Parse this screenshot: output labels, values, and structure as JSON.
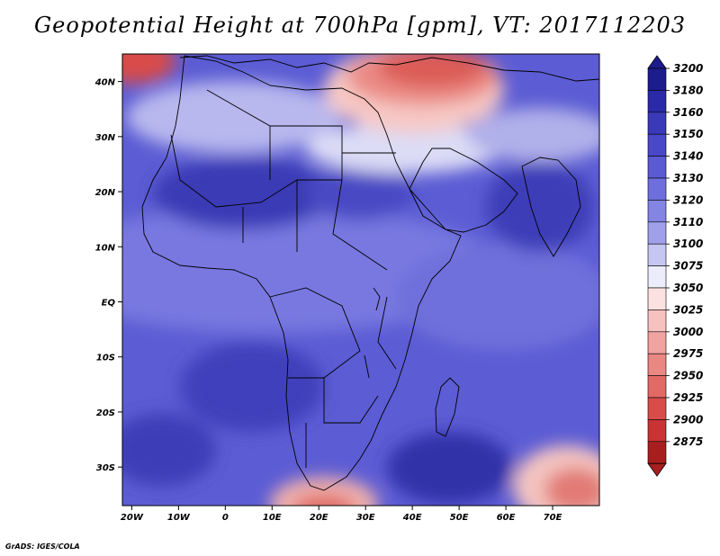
{
  "title": "Geopotential Height at 700hPa [gpm], VT: 2017112203",
  "footer": "GrADS: IGES/COLA",
  "map": {
    "lon_range": [
      -22,
      80
    ],
    "lat_range": [
      -37,
      45
    ],
    "lon_ticks": [
      "20W",
      "10W",
      "0",
      "10E",
      "20E",
      "30E",
      "40E",
      "50E",
      "60E",
      "70E"
    ],
    "lat_ticks": [
      "40N",
      "30N",
      "20N",
      "10N",
      "EQ",
      "10S",
      "20S",
      "30S"
    ],
    "field": "Geopotential Height at 700hPa",
    "units": "gpm"
  },
  "colorbar": {
    "labels": [
      "3200",
      "3180",
      "3160",
      "3150",
      "3140",
      "3130",
      "3120",
      "3110",
      "3100",
      "3075",
      "3050",
      "3025",
      "3000",
      "2975",
      "2950",
      "2925",
      "2900",
      "2875"
    ],
    "colors": [
      "#1c1c8c",
      "#2a2aa8",
      "#3a3ab8",
      "#4848c8",
      "#5a5ad2",
      "#6e6edc",
      "#8484e2",
      "#a0a0ea",
      "#c6c6f2",
      "#ececfa",
      "#fbe2e0",
      "#f6c2bf",
      "#f0a3a0",
      "#e98783",
      "#e26a66",
      "#d84d4a",
      "#c83434",
      "#a81e1e"
    ]
  },
  "colors": {
    "ocean_blue": "#5c5cd4",
    "deep_blue": "#3c3cb8",
    "light_blue": "#b4b4ec",
    "white": "#f4f4fc",
    "warm_red": "#e06a64",
    "coast": "#000000"
  }
}
